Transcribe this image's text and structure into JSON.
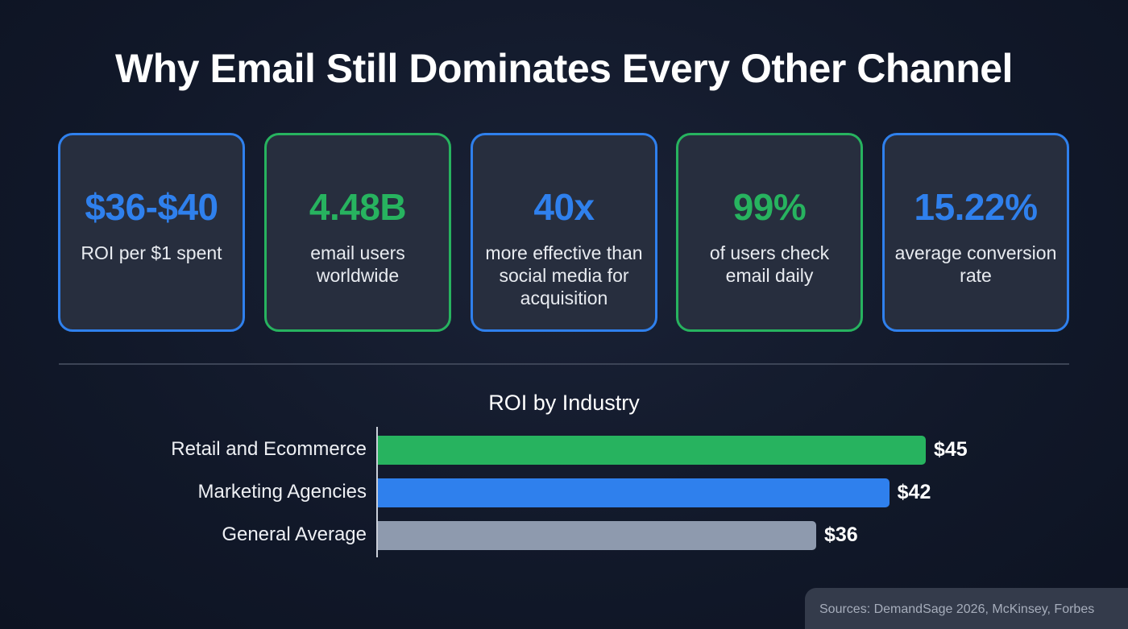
{
  "title": "Why Email Still Dominates Every Other Channel",
  "colors": {
    "blue": "#2f80ed",
    "green": "#27b35f",
    "gray": "#8e9aae",
    "background": "#111829",
    "card": "#272e3e"
  },
  "cards": [
    {
      "value": "$36-$40",
      "label": "ROI per $1 spent",
      "accent": "#2f80ed"
    },
    {
      "value": "4.48B",
      "label": "email users worldwide",
      "accent": "#27b35f"
    },
    {
      "value": "40x",
      "label": "more effective than social media for acquisition",
      "accent": "#2f80ed"
    },
    {
      "value": "99%",
      "label": "of users check email daily",
      "accent": "#27b35f"
    },
    {
      "value": "15.22%",
      "label": "average conversion rate",
      "accent": "#2f80ed"
    }
  ],
  "chart_data": {
    "type": "bar",
    "orientation": "horizontal",
    "title": "ROI by Industry",
    "categories": [
      "Retail and Ecommerce",
      "Marketing Agencies",
      "General Average"
    ],
    "values": [
      45,
      42,
      36
    ],
    "data_labels": [
      "$45",
      "$42",
      "$36"
    ],
    "bar_colors": [
      "#27b35f",
      "#2f80ed",
      "#8e9aae"
    ],
    "xlim": [
      0,
      45
    ],
    "grid": false
  },
  "sources": "Sources: DemandSage 2026, McKinsey, Forbes"
}
